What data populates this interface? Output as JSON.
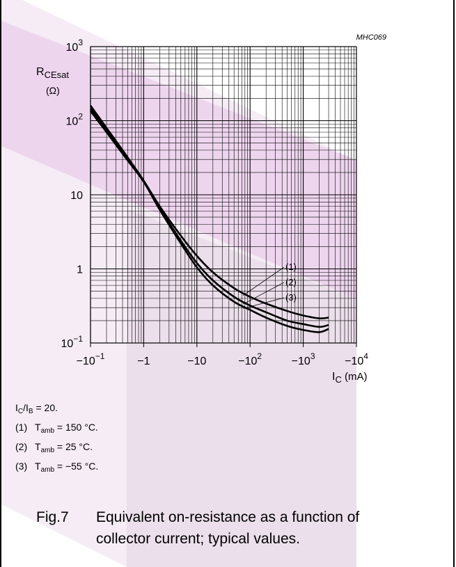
{
  "colors": {
    "watermark": "#8b2e8b",
    "line": "#000000",
    "grid": "#000000"
  },
  "figure_code": "MHC069",
  "chart_data": {
    "type": "line",
    "x_scale": "log",
    "y_scale": "log",
    "xlabel": "I_C (mA)",
    "ylabel": "R_CEsat (Ω)",
    "x_range": [
      -0.1,
      -10000
    ],
    "y_range": [
      0.1,
      1000
    ],
    "x_ticks": [
      {
        "value": -0.1,
        "base": "−10",
        "exp": "−1"
      },
      {
        "value": -1,
        "base": "−1",
        "exp": ""
      },
      {
        "value": -10,
        "base": "−10",
        "exp": ""
      },
      {
        "value": -100,
        "base": "−10",
        "exp": "2"
      },
      {
        "value": -1000,
        "base": "−10",
        "exp": "3"
      },
      {
        "value": -10000,
        "base": "−10",
        "exp": "4"
      }
    ],
    "y_ticks": [
      {
        "value": 0.1,
        "base": "10",
        "exp": "−1"
      },
      {
        "value": 1,
        "base": "1",
        "exp": ""
      },
      {
        "value": 10,
        "base": "10",
        "exp": ""
      },
      {
        "value": 100,
        "base": "10",
        "exp": "2"
      },
      {
        "value": 1000,
        "base": "10",
        "exp": "3"
      }
    ],
    "series": [
      {
        "name": "(1)",
        "label_at": 0.92,
        "x": [
          -0.1,
          -0.2,
          -0.5,
          -1,
          -2,
          -5,
          -10,
          -20,
          -50,
          -100,
          -200,
          -500,
          -1000,
          -2000,
          -3000
        ],
        "y": [
          160,
          80,
          32,
          15.5,
          7,
          2.8,
          1.5,
          0.9,
          0.55,
          0.42,
          0.34,
          0.27,
          0.235,
          0.215,
          0.22
        ]
      },
      {
        "name": "(2)",
        "label_at": 0.83,
        "x": [
          -0.1,
          -0.2,
          -0.5,
          -1,
          -2,
          -5,
          -10,
          -20,
          -50,
          -100,
          -200,
          -500,
          -1000,
          -2000,
          -3000
        ],
        "y": [
          145,
          75,
          30,
          15,
          6.6,
          2.4,
          1.2,
          0.7,
          0.42,
          0.32,
          0.26,
          0.2,
          0.18,
          0.165,
          0.175
        ]
      },
      {
        "name": "(3)",
        "label_at": 0.78,
        "x": [
          -0.1,
          -0.2,
          -0.5,
          -1,
          -2,
          -5,
          -10,
          -20,
          -50,
          -100,
          -200,
          -500,
          -1000,
          -2000,
          -3000
        ],
        "y": [
          135,
          70,
          29,
          15,
          6.3,
          2.2,
          1.05,
          0.6,
          0.36,
          0.28,
          0.22,
          0.17,
          0.15,
          0.14,
          0.155
        ]
      }
    ]
  },
  "notes": {
    "ratio": {
      "a": "I",
      "a_sub": "C",
      "sep": "/I",
      "b_sub": "B",
      "rest": " = 20."
    },
    "items": [
      {
        "num": "(1)",
        "t": "T",
        "sub": "amb",
        "rest": " = 150 °C."
      },
      {
        "num": "(2)",
        "t": "T",
        "sub": "amb",
        "rest": " = 25 °C."
      },
      {
        "num": "(3)",
        "t": "T",
        "sub": "amb",
        "rest": " = −55 °C."
      }
    ]
  },
  "caption": {
    "fig": "Fig.7",
    "line1": "Equivalent on-resistance as a function of",
    "line2": "collector current; typical values."
  }
}
